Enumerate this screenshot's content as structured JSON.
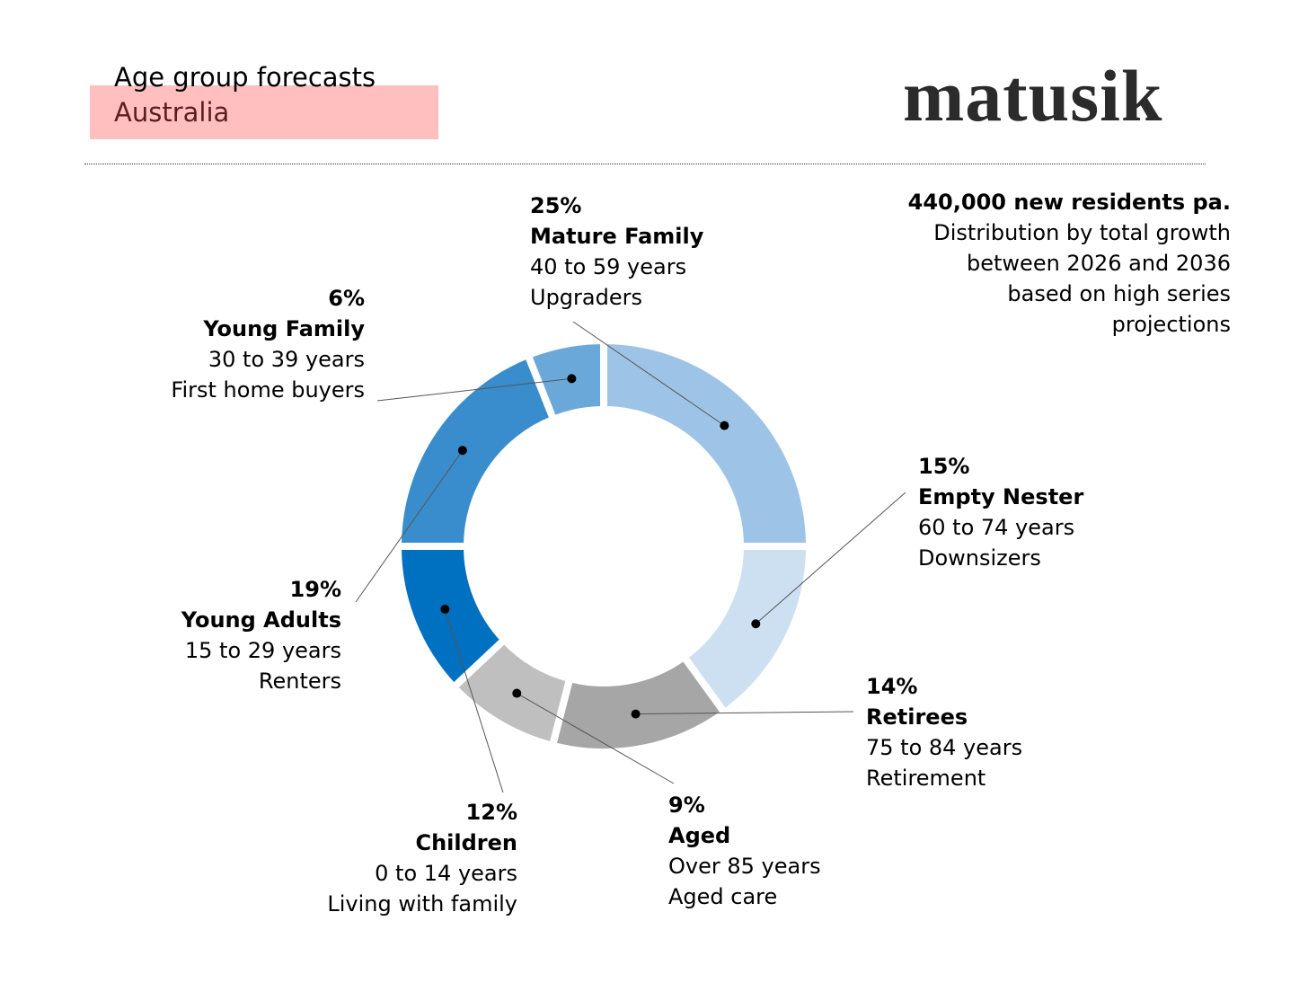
{
  "header": {
    "title": "Age group forecasts",
    "subtitle": "Australia",
    "logo": "matusik"
  },
  "note": {
    "headline": "440,000 new residents pa.",
    "lines": [
      "Distribution by total growth",
      "between 2026 and 2036",
      "based on high series",
      "projections"
    ]
  },
  "chart_data": {
    "type": "pie",
    "donut": true,
    "unit": "%",
    "legend": "none",
    "slices": [
      {
        "name": "Mature Family",
        "value": 25,
        "label": "25%",
        "ages": "40 to 59 years",
        "segment": "Upgraders",
        "color": "#9dc3e6"
      },
      {
        "name": "Empty Nester",
        "value": 15,
        "label": "15%",
        "ages": "60 to 74 years",
        "segment": "Downsizers",
        "color": "#cde0f2"
      },
      {
        "name": "Retirees",
        "value": 14,
        "label": "14%",
        "ages": "75 to 84 years",
        "segment": "Retirement",
        "color": "#a6a6a6"
      },
      {
        "name": "Aged",
        "value": 9,
        "label": "9%",
        "ages": "Over 85 years",
        "segment": "Aged care",
        "color": "#bfbfbf"
      },
      {
        "name": "Children",
        "value": 12,
        "label": "12%",
        "ages": "0 to 14 years",
        "segment": "Living with family",
        "color": "#0070c0"
      },
      {
        "name": "Young Adults",
        "value": 19,
        "label": "19%",
        "ages": "15 to 29 years",
        "segment": "Renters",
        "color": "#3a8dcc"
      },
      {
        "name": "Young Family",
        "value": 6,
        "label": "6%",
        "ages": "30 to 39 years",
        "segment": "First home buyers",
        "color": "#6aa8d9"
      }
    ]
  }
}
